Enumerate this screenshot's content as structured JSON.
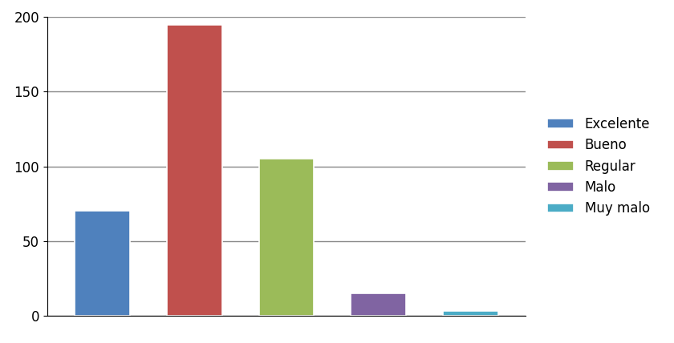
{
  "chart_data": {
    "type": "bar",
    "categories": [
      "Excelente",
      "Bueno",
      "Regular",
      "Malo",
      "Muy malo"
    ],
    "values": [
      70,
      195,
      105,
      15,
      3
    ],
    "colors": [
      "#4f81bd",
      "#c0504d",
      "#9bbb59",
      "#8064a2",
      "#4bacc6"
    ],
    "ylim": [
      0,
      200
    ],
    "yticks": [
      0,
      50,
      100,
      150,
      200
    ],
    "grid": true,
    "legend": "right",
    "tick_labels": "y"
  }
}
